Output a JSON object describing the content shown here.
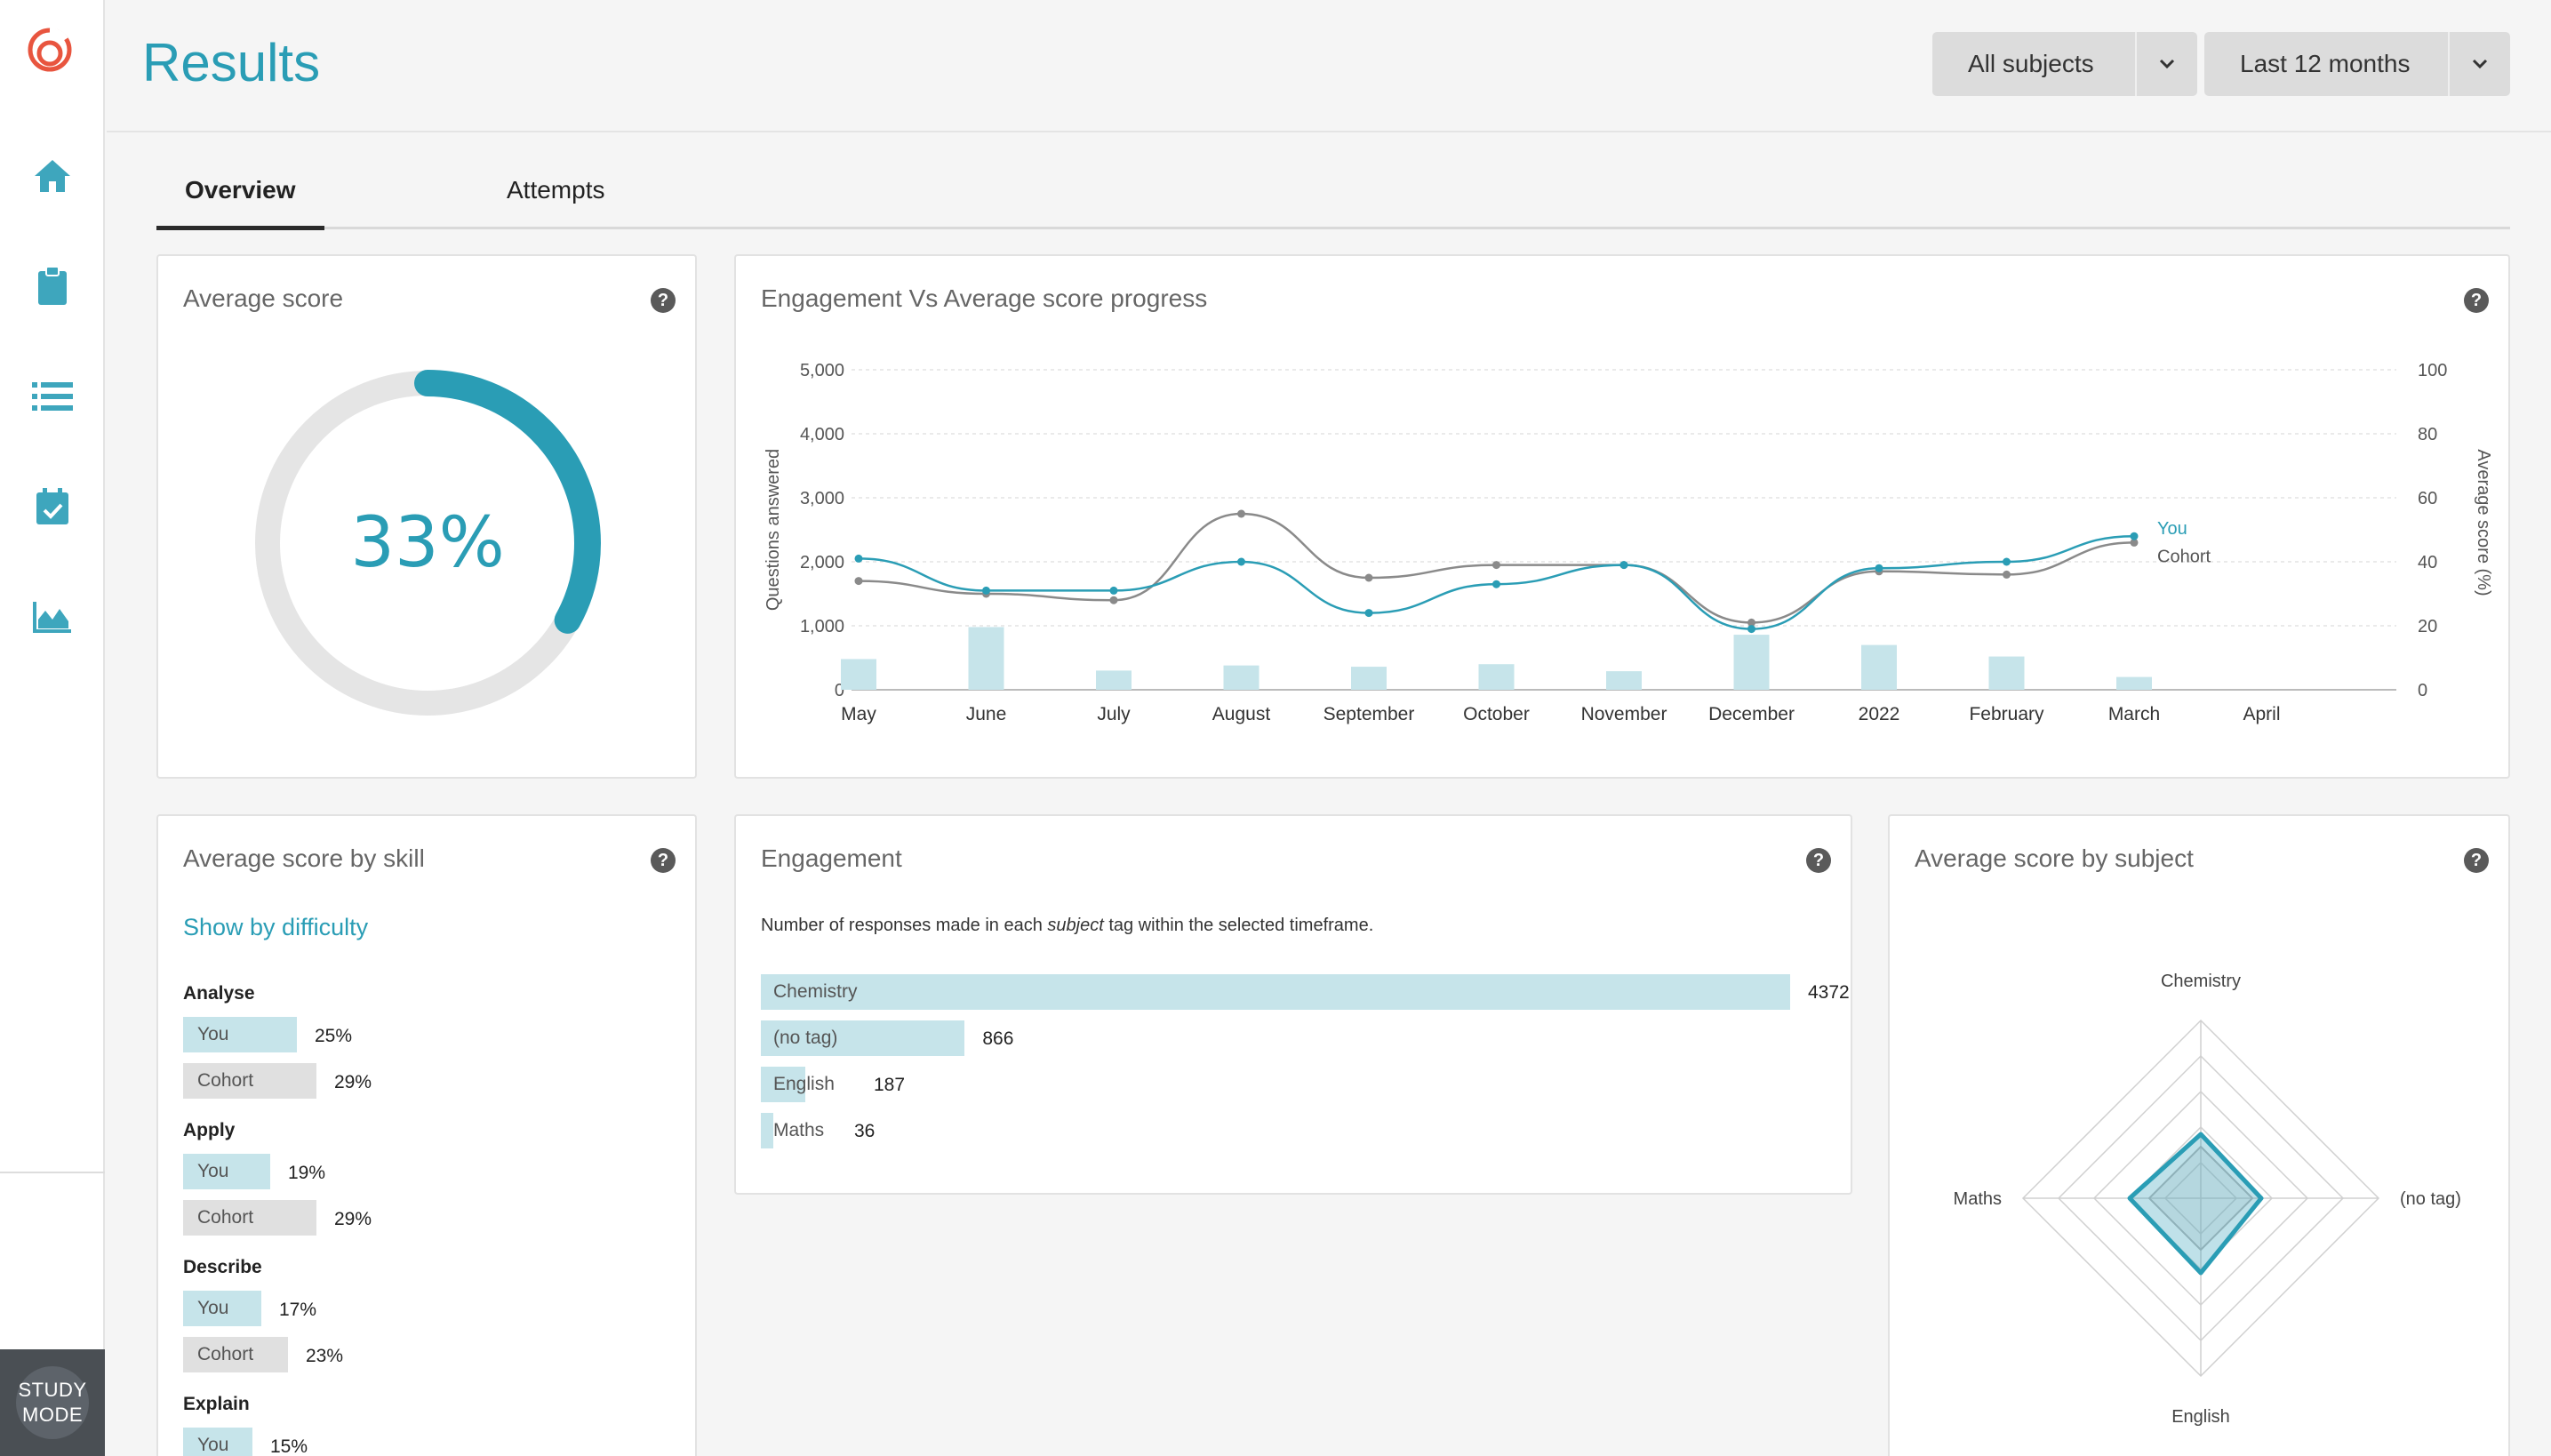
{
  "page": {
    "title": "Results"
  },
  "filters": {
    "subject": "All subjects",
    "period": "Last 12 months"
  },
  "tabs": [
    {
      "label": "Overview",
      "active": true
    },
    {
      "label": "Attempts",
      "active": false
    }
  ],
  "sidebar": {
    "items": [
      {
        "name": "home-icon"
      },
      {
        "name": "clipboard-icon"
      },
      {
        "name": "list-icon"
      },
      {
        "name": "calendar-check-icon"
      },
      {
        "name": "area-chart-icon"
      }
    ],
    "study_mode": {
      "line1": "STUDY",
      "line2": "MODE"
    }
  },
  "colors": {
    "accent": "#2a9db5",
    "you": "#c6e4ea",
    "cohort": "#e0e0e0",
    "brand_red": "#e8553f"
  },
  "average_score": {
    "title": "Average score",
    "value": 33,
    "value_label": "33%"
  },
  "progress_chart": {
    "title": "Engagement Vs Average score progress"
  },
  "skills": {
    "title": "Average score by skill",
    "toggle_link": "Show by difficulty",
    "groups": [
      {
        "name": "Analyse",
        "you_label": "You",
        "you": "25%",
        "cohort_label": "Cohort",
        "cohort": "29%"
      },
      {
        "name": "Apply",
        "you_label": "You",
        "you": "19%",
        "cohort_label": "Cohort",
        "cohort": "29%"
      },
      {
        "name": "Describe",
        "you_label": "You",
        "you": "17%",
        "cohort_label": "Cohort",
        "cohort": "23%"
      },
      {
        "name": "Explain",
        "you_label": "You",
        "you": "15%"
      }
    ]
  },
  "engagement": {
    "title": "Engagement",
    "note_before": "Number of responses made in each ",
    "note_em": "subject",
    "note_after": " tag within the selected timeframe.",
    "rows": [
      {
        "label": "Chemistry",
        "value": "4372"
      },
      {
        "label": "(no tag)",
        "value": "866"
      },
      {
        "label": "English",
        "value": "187"
      },
      {
        "label": "Maths",
        "value": "36"
      }
    ]
  },
  "subject_radar": {
    "title": "Average score by subject"
  },
  "chart_data": [
    {
      "type": "line",
      "title": "Engagement Vs Average score progress",
      "categories": [
        "May",
        "June",
        "July",
        "August",
        "September",
        "October",
        "November",
        "December",
        "2022",
        "February",
        "March",
        "April"
      ],
      "ylabel": "Questions answered",
      "ylabel_right": "Average score (%)",
      "ylim": [
        0,
        5000
      ],
      "ylim_right": [
        0,
        100
      ],
      "yticks": [
        "5,000",
        "4,000",
        "3,000",
        "2,000",
        "1,000",
        "0"
      ],
      "yticks_right": [
        "100",
        "80",
        "60",
        "40",
        "20",
        "0"
      ],
      "bars": {
        "values": [
          480,
          980,
          300,
          380,
          360,
          400,
          290,
          860,
          700,
          520,
          200,
          0
        ]
      },
      "series": [
        {
          "name": "You",
          "values": [
            41,
            31,
            31,
            40,
            24,
            33,
            39,
            19,
            38,
            40,
            48,
            null
          ]
        },
        {
          "name": "Cohort",
          "values": [
            34,
            30,
            28,
            55,
            35,
            39,
            39,
            21,
            37,
            36,
            46,
            null
          ]
        }
      ],
      "grid": true,
      "legend": "inline-right"
    },
    {
      "type": "bar",
      "title": "Engagement",
      "categories": [
        "Chemistry",
        "(no tag)",
        "English",
        "Maths"
      ],
      "values": [
        4372,
        866,
        187,
        36
      ],
      "orientation": "horizontal"
    },
    {
      "type": "radar",
      "title": "Average score by subject",
      "categories": [
        "Chemistry",
        "(no tag)",
        "English",
        "Maths"
      ],
      "rlim": [
        0,
        100
      ],
      "series": [
        {
          "name": "You",
          "values": [
            36,
            34,
            42,
            40
          ]
        },
        {
          "name": "Cohort",
          "values": [
            29,
            29,
            29,
            29
          ]
        }
      ]
    },
    {
      "type": "donut",
      "title": "Average score",
      "values": [
        33
      ],
      "max": 100
    }
  ]
}
